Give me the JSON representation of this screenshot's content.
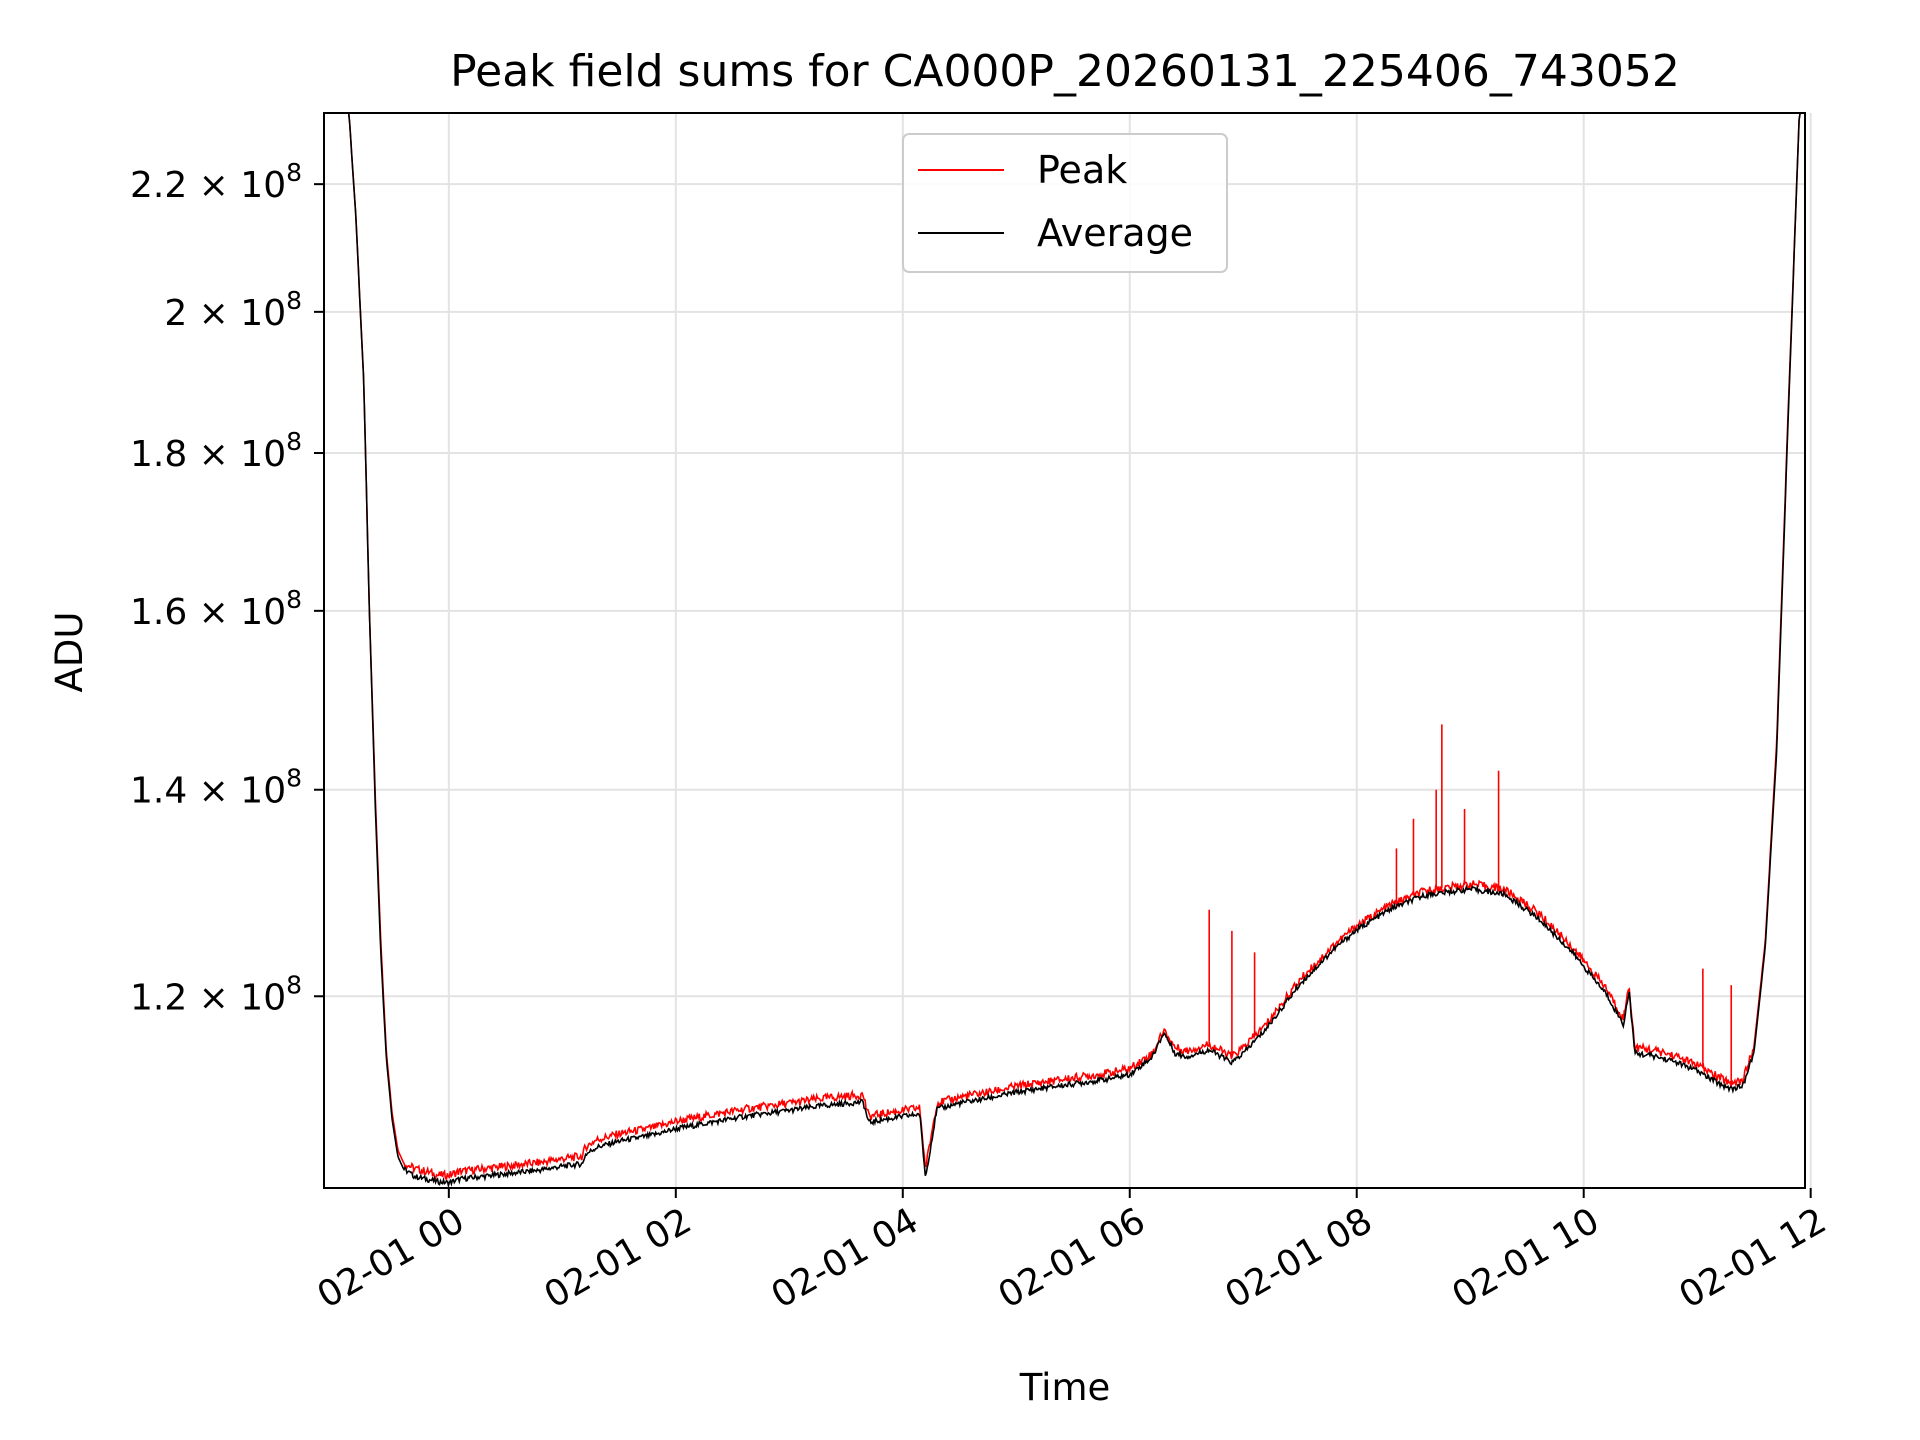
{
  "chart_data": {
    "type": "line",
    "title": "Peak field sums for CA000P_20260131_225406_743052",
    "xlabel": "Time",
    "ylabel": "ADU",
    "yscale": "log",
    "xlim_hours": [
      -1.1,
      11.95
    ],
    "ylim": [
      104000000,
      232000000
    ],
    "grid": true,
    "legend_position": "top-center",
    "x_ticks": [
      {
        "hours": 0,
        "label": "02-01 00"
      },
      {
        "hours": 2,
        "label": "02-01 02"
      },
      {
        "hours": 4,
        "label": "02-01 04"
      },
      {
        "hours": 6,
        "label": "02-01 06"
      },
      {
        "hours": 8,
        "label": "02-01 08"
      },
      {
        "hours": 10,
        "label": "02-01 10"
      },
      {
        "hours": 12,
        "label": "02-01 12"
      }
    ],
    "y_ticks": [
      {
        "value": 120000000,
        "mantissa": "1.2",
        "exp": "8"
      },
      {
        "value": 140000000,
        "mantissa": "1.4",
        "exp": "8"
      },
      {
        "value": 160000000,
        "mantissa": "1.6",
        "exp": "8"
      },
      {
        "value": 180000000,
        "mantissa": "1.8",
        "exp": "8"
      },
      {
        "value": 200000000,
        "mantissa": "2",
        "exp": "8"
      },
      {
        "value": 220000000,
        "mantissa": "2.2",
        "exp": "8"
      }
    ],
    "series": [
      {
        "name": "Peak",
        "color": "#ff0000",
        "x_hours": [
          -1.1,
          -0.88,
          -0.82,
          -0.75,
          -0.7,
          -0.65,
          -0.6,
          -0.55,
          -0.5,
          -0.45,
          -0.4,
          -0.3,
          -0.2,
          -0.1,
          0.0,
          0.1,
          0.3,
          0.5,
          0.8,
          1.0,
          1.18,
          1.2,
          1.3,
          1.5,
          1.8,
          2.0,
          2.3,
          2.6,
          3.0,
          3.3,
          3.65,
          3.7,
          3.8,
          4.0,
          4.15,
          4.2,
          4.3,
          4.5,
          4.8,
          5.0,
          5.2,
          5.5,
          5.8,
          6.0,
          6.2,
          6.3,
          6.4,
          6.5,
          6.7,
          6.9,
          7.0,
          7.2,
          7.5,
          7.8,
          8.0,
          8.3,
          8.6,
          9.0,
          9.3,
          9.6,
          9.9,
          10.2,
          10.35,
          10.4,
          10.45,
          10.6,
          10.8,
          11.0,
          11.2,
          11.3,
          11.4,
          11.5,
          11.6,
          11.7,
          11.8,
          11.9,
          11.95
        ],
        "values": [
          232000000,
          232000000,
          215000000,
          190000000,
          160000000,
          140000000,
          125000000,
          115000000,
          110000000,
          107000000,
          106000000,
          105500000,
          105300000,
          105000000,
          105000000,
          105300000,
          105500000,
          105700000,
          106000000,
          106300000,
          106500000,
          107200000,
          107800000,
          108300000,
          108800000,
          109300000,
          109800000,
          110300000,
          110800000,
          111200000,
          111500000,
          109700000,
          109900000,
          110200000,
          110400000,
          105500000,
          110800000,
          111300000,
          111800000,
          112200000,
          112500000,
          112900000,
          113300000,
          113700000,
          115000000,
          117000000,
          115500000,
          115200000,
          115800000,
          114700000,
          115500000,
          117500000,
          121500000,
          124700000,
          126500000,
          128500000,
          129800000,
          130500000,
          130000000,
          127700000,
          124500000,
          120700000,
          118000000,
          121000000,
          115500000,
          115300000,
          114800000,
          114000000,
          112900000,
          112500000,
          112700000,
          115500000,
          125000000,
          145000000,
          185000000,
          232000000,
          232000000
        ],
        "spikes": [
          {
            "hours": 6.7,
            "value": 128000000
          },
          {
            "hours": 6.9,
            "value": 126000000
          },
          {
            "hours": 7.1,
            "value": 124000000
          },
          {
            "hours": 8.35,
            "value": 134000000
          },
          {
            "hours": 8.5,
            "value": 137000000
          },
          {
            "hours": 8.7,
            "value": 140000000
          },
          {
            "hours": 8.75,
            "value": 147000000
          },
          {
            "hours": 8.95,
            "value": 138000000
          },
          {
            "hours": 9.25,
            "value": 142000000
          },
          {
            "hours": 11.05,
            "value": 122500000
          },
          {
            "hours": 11.3,
            "value": 121000000
          }
        ]
      },
      {
        "name": "Average",
        "color": "#000000",
        "x_hours": [
          -1.1,
          -0.88,
          -0.82,
          -0.75,
          -0.7,
          -0.65,
          -0.6,
          -0.55,
          -0.5,
          -0.45,
          -0.4,
          -0.3,
          -0.2,
          -0.1,
          0.0,
          0.1,
          0.3,
          0.5,
          0.8,
          1.0,
          1.18,
          1.2,
          1.3,
          1.5,
          1.8,
          2.0,
          2.3,
          2.6,
          3.0,
          3.3,
          3.65,
          3.7,
          3.8,
          4.0,
          4.15,
          4.2,
          4.3,
          4.5,
          4.8,
          5.0,
          5.2,
          5.5,
          5.8,
          6.0,
          6.2,
          6.3,
          6.4,
          6.5,
          6.7,
          6.9,
          7.0,
          7.2,
          7.5,
          7.8,
          8.0,
          8.3,
          8.6,
          9.0,
          9.3,
          9.6,
          9.9,
          10.2,
          10.35,
          10.4,
          10.45,
          10.6,
          10.8,
          11.0,
          11.2,
          11.3,
          11.4,
          11.5,
          11.6,
          11.7,
          11.8,
          11.9,
          11.95
        ],
        "values": [
          232000000,
          232000000,
          215000000,
          190000000,
          160000000,
          139000000,
          124000000,
          114500000,
          109500000,
          106500000,
          105500000,
          104900000,
          104700000,
          104500000,
          104400000,
          104700000,
          104900000,
          105100000,
          105400000,
          105700000,
          105900000,
          106600000,
          107200000,
          107700000,
          108200000,
          108700000,
          109200000,
          109700000,
          110200000,
          110600000,
          110900000,
          109200000,
          109400000,
          109700000,
          109900000,
          104800000,
          110300000,
          110800000,
          111300000,
          111700000,
          112000000,
          112400000,
          112800000,
          113200000,
          114700000,
          116800000,
          115000000,
          114700000,
          115300000,
          114200000,
          115000000,
          117100000,
          121100000,
          124300000,
          126100000,
          128100000,
          129400000,
          130000000,
          129500000,
          127200000,
          124000000,
          120200000,
          117500000,
          120500000,
          115000000,
          114800000,
          114300000,
          113500000,
          112400000,
          112000000,
          112200000,
          115000000,
          124500000,
          144000000,
          184000000,
          232000000,
          232000000
        ]
      }
    ]
  }
}
